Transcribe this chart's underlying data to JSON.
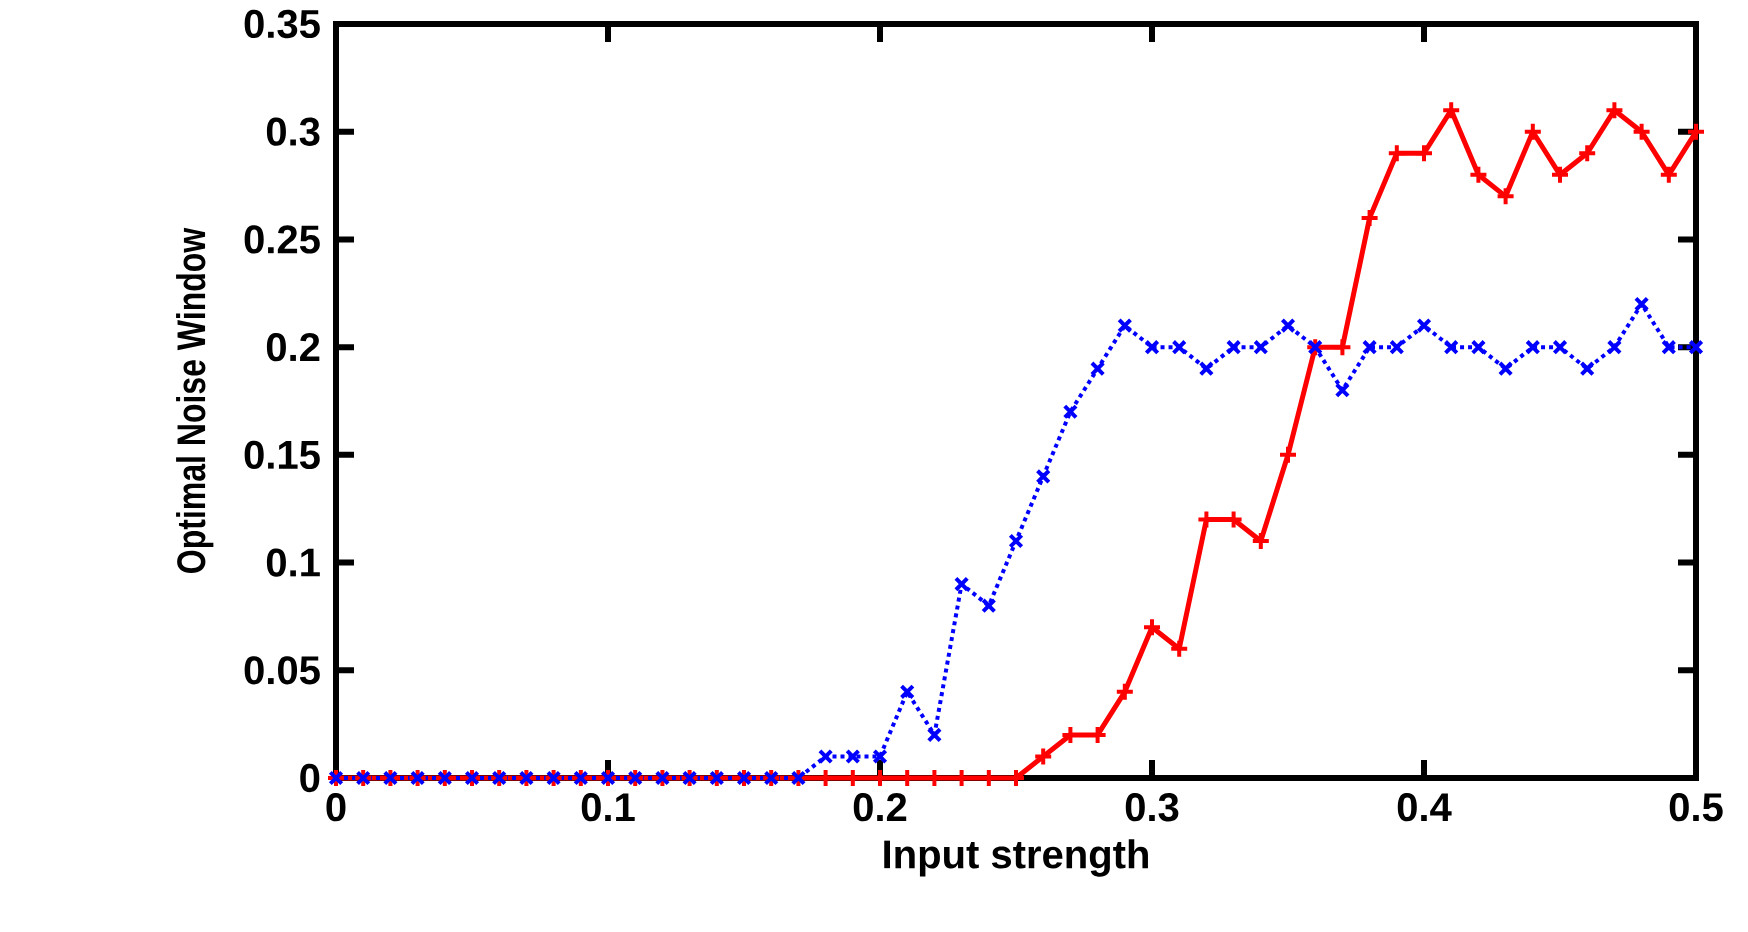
{
  "chart_data": {
    "type": "line",
    "xlabel": "Input strength",
    "ylabel": "Optimal Noise Window",
    "x": [
      0,
      0.01,
      0.02,
      0.03,
      0.04,
      0.05,
      0.06,
      0.07,
      0.08,
      0.09,
      0.1,
      0.11,
      0.12,
      0.13,
      0.14,
      0.15,
      0.16,
      0.17,
      0.18,
      0.19,
      0.2,
      0.21,
      0.22,
      0.23,
      0.24,
      0.25,
      0.26,
      0.27,
      0.28,
      0.29,
      0.3,
      0.31,
      0.32,
      0.33,
      0.34,
      0.35,
      0.36,
      0.37,
      0.38,
      0.39,
      0.4,
      0.41,
      0.42,
      0.43,
      0.44,
      0.45,
      0.46,
      0.47,
      0.48,
      0.49,
      0.5
    ],
    "series": [
      {
        "color": "#ff0000",
        "line_style": "solid",
        "marker": "plus",
        "values": [
          0,
          0,
          0,
          0,
          0,
          0,
          0,
          0,
          0,
          0,
          0,
          0,
          0,
          0,
          0,
          0,
          0,
          0,
          0,
          0,
          0,
          0,
          0,
          0,
          0,
          0,
          0.01,
          0.02,
          0.02,
          0.04,
          0.07,
          0.06,
          0.12,
          0.12,
          0.11,
          0.15,
          0.2,
          0.2,
          0.26,
          0.29,
          0.29,
          0.31,
          0.28,
          0.27,
          0.3,
          0.28,
          0.29,
          0.31,
          0.3,
          0.28,
          0.3
        ]
      },
      {
        "color": "#0000ff",
        "line_style": "dotted",
        "marker": "cross",
        "values": [
          0,
          0,
          0,
          0,
          0,
          0,
          0,
          0,
          0,
          0,
          0,
          0,
          0,
          0,
          0,
          0,
          0,
          0,
          0.01,
          0.01,
          0.01,
          0.04,
          0.02,
          0.09,
          0.08,
          0.11,
          0.14,
          0.17,
          0.19,
          0.21,
          0.2,
          0.2,
          0.19,
          0.2,
          0.2,
          0.21,
          0.2,
          0.18,
          0.2,
          0.2,
          0.21,
          0.2,
          0.2,
          0.19,
          0.2,
          0.2,
          0.19,
          0.2,
          0.22,
          0.2,
          0.2
        ]
      }
    ],
    "xlim": [
      0,
      0.5
    ],
    "ylim": [
      0,
      0.35
    ],
    "xticks": [
      0,
      0.1,
      0.2,
      0.3,
      0.4,
      0.5
    ],
    "yticks": [
      0,
      0.05,
      0.1,
      0.15,
      0.2,
      0.25,
      0.3,
      0.35
    ]
  }
}
